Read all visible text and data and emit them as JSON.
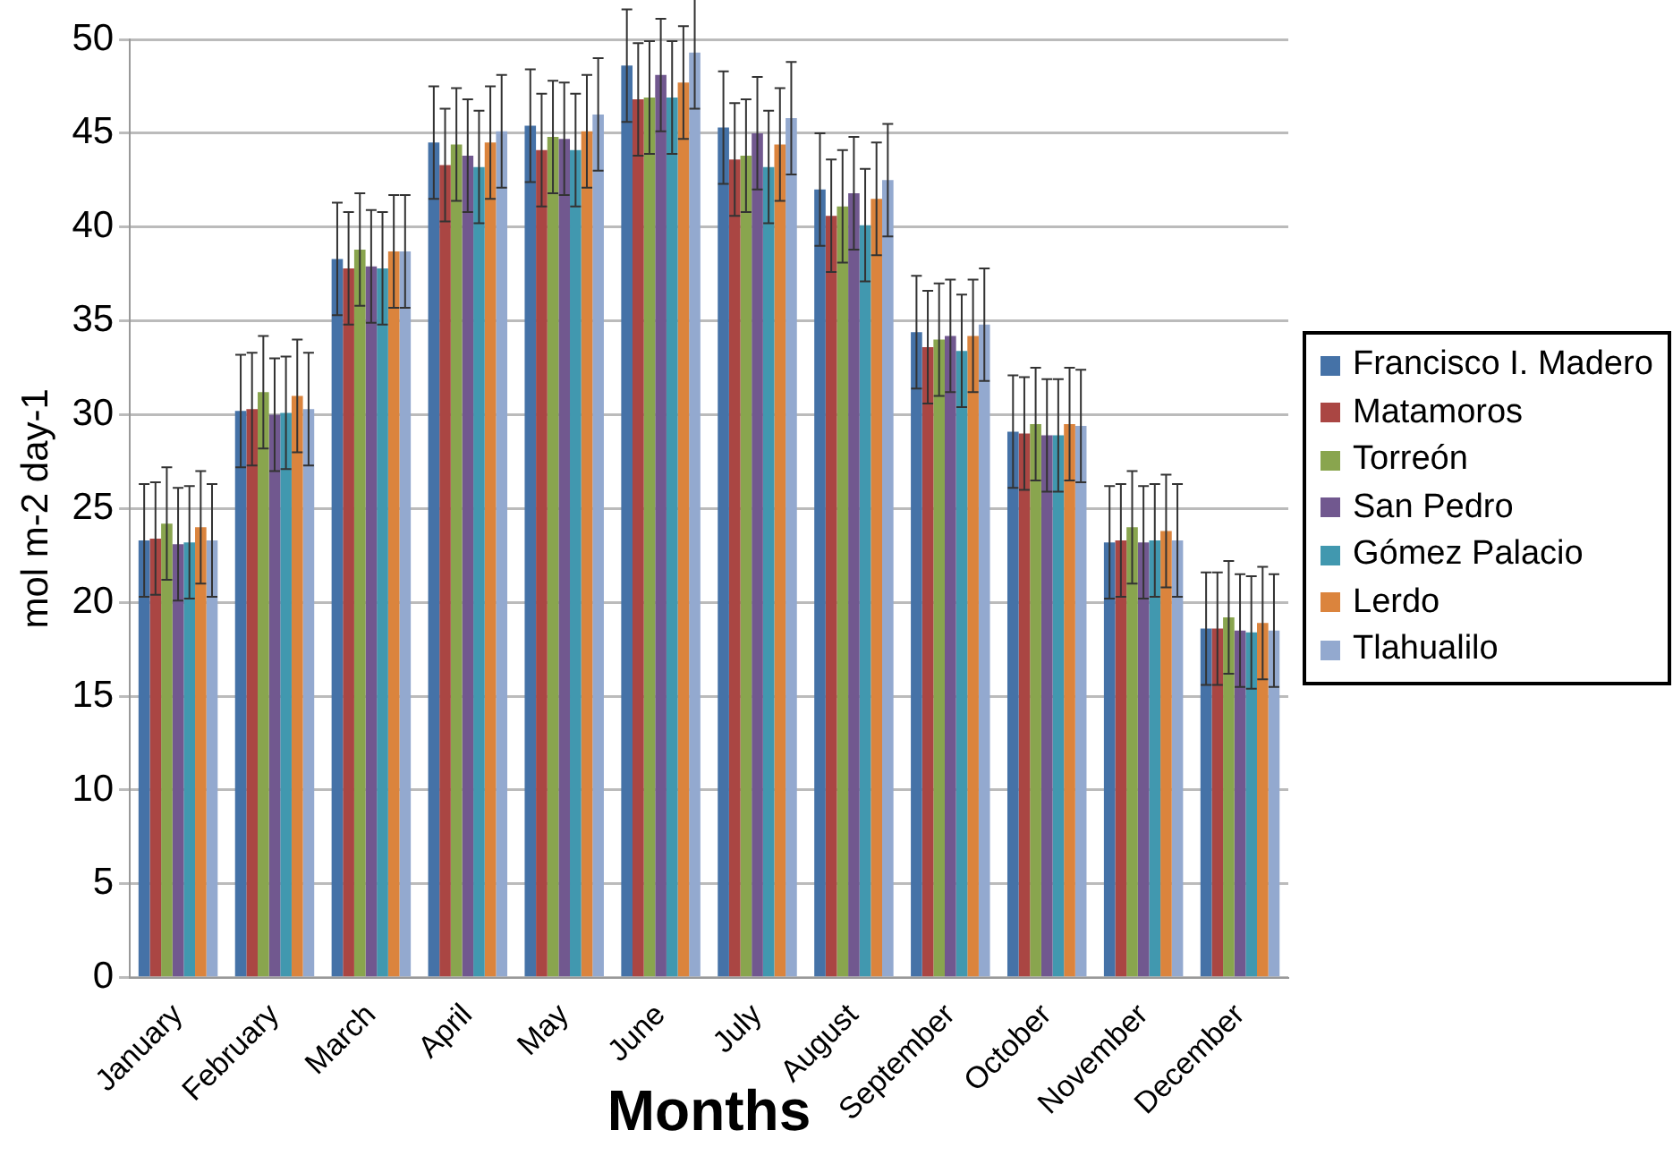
{
  "chart_data": {
    "type": "bar",
    "xlabel": "Months",
    "ylabel": "mol m-2 day-1",
    "categories": [
      "January",
      "February",
      "March",
      "April",
      "May",
      "June",
      "July",
      "August",
      "September",
      "October",
      "November",
      "December"
    ],
    "ylim": [
      0,
      50
    ],
    "yticks": [
      0,
      5,
      10,
      15,
      20,
      25,
      30,
      35,
      40,
      45,
      50
    ],
    "grid": "y",
    "legend": "right",
    "series": [
      {
        "name": "Francisco I. Madero",
        "color": "#4572a7",
        "values": [
          23.3,
          30.2,
          38.3,
          44.5,
          45.4,
          48.6,
          45.3,
          42.0,
          34.4,
          29.1,
          23.2,
          18.6
        ],
        "errors": [
          3,
          3,
          3,
          3,
          3,
          3,
          3,
          3,
          3,
          3,
          3,
          3
        ]
      },
      {
        "name": "Matamoros",
        "color": "#aa4643",
        "values": [
          23.4,
          30.3,
          37.8,
          43.3,
          44.1,
          46.8,
          43.6,
          40.6,
          33.6,
          29.0,
          23.3,
          18.6
        ],
        "errors": [
          3,
          3,
          3,
          3,
          3,
          3,
          3,
          3,
          3,
          3,
          3,
          3
        ]
      },
      {
        "name": "Torreón",
        "color": "#89a54e",
        "values": [
          24.2,
          31.2,
          38.8,
          44.4,
          44.8,
          46.9,
          43.8,
          41.1,
          34.0,
          29.5,
          24.0,
          19.2
        ],
        "errors": [
          3,
          3,
          3,
          3,
          3,
          3,
          3,
          3,
          3,
          3,
          3,
          3
        ]
      },
      {
        "name": "San Pedro",
        "color": "#71588f",
        "values": [
          23.1,
          30.0,
          37.9,
          43.8,
          44.7,
          48.1,
          45.0,
          41.8,
          34.2,
          28.9,
          23.2,
          18.5
        ],
        "errors": [
          3,
          3,
          3,
          3,
          3,
          3,
          3,
          3,
          3,
          3,
          3,
          3
        ]
      },
      {
        "name": "Gómez Palacio",
        "color": "#4198af",
        "values": [
          23.2,
          30.1,
          37.8,
          43.2,
          44.1,
          46.9,
          43.2,
          40.1,
          33.4,
          28.9,
          23.3,
          18.4
        ],
        "errors": [
          3,
          3,
          3,
          3,
          3,
          3,
          3,
          3,
          3,
          3,
          3,
          3
        ]
      },
      {
        "name": "Lerdo",
        "color": "#db843d",
        "values": [
          24.0,
          31.0,
          38.7,
          44.5,
          45.1,
          47.7,
          44.4,
          41.5,
          34.2,
          29.5,
          23.8,
          18.9
        ],
        "errors": [
          3,
          3,
          3,
          3,
          3,
          3,
          3,
          3,
          3,
          3,
          3,
          3
        ]
      },
      {
        "name": "Tlahualilo",
        "color": "#93a9cf",
        "values": [
          23.3,
          30.3,
          38.7,
          45.1,
          46.0,
          49.3,
          45.8,
          42.5,
          34.8,
          29.4,
          23.3,
          18.5
        ],
        "errors": [
          3,
          3,
          3,
          3,
          3,
          3,
          3,
          3,
          3,
          3,
          3,
          3
        ]
      }
    ]
  }
}
